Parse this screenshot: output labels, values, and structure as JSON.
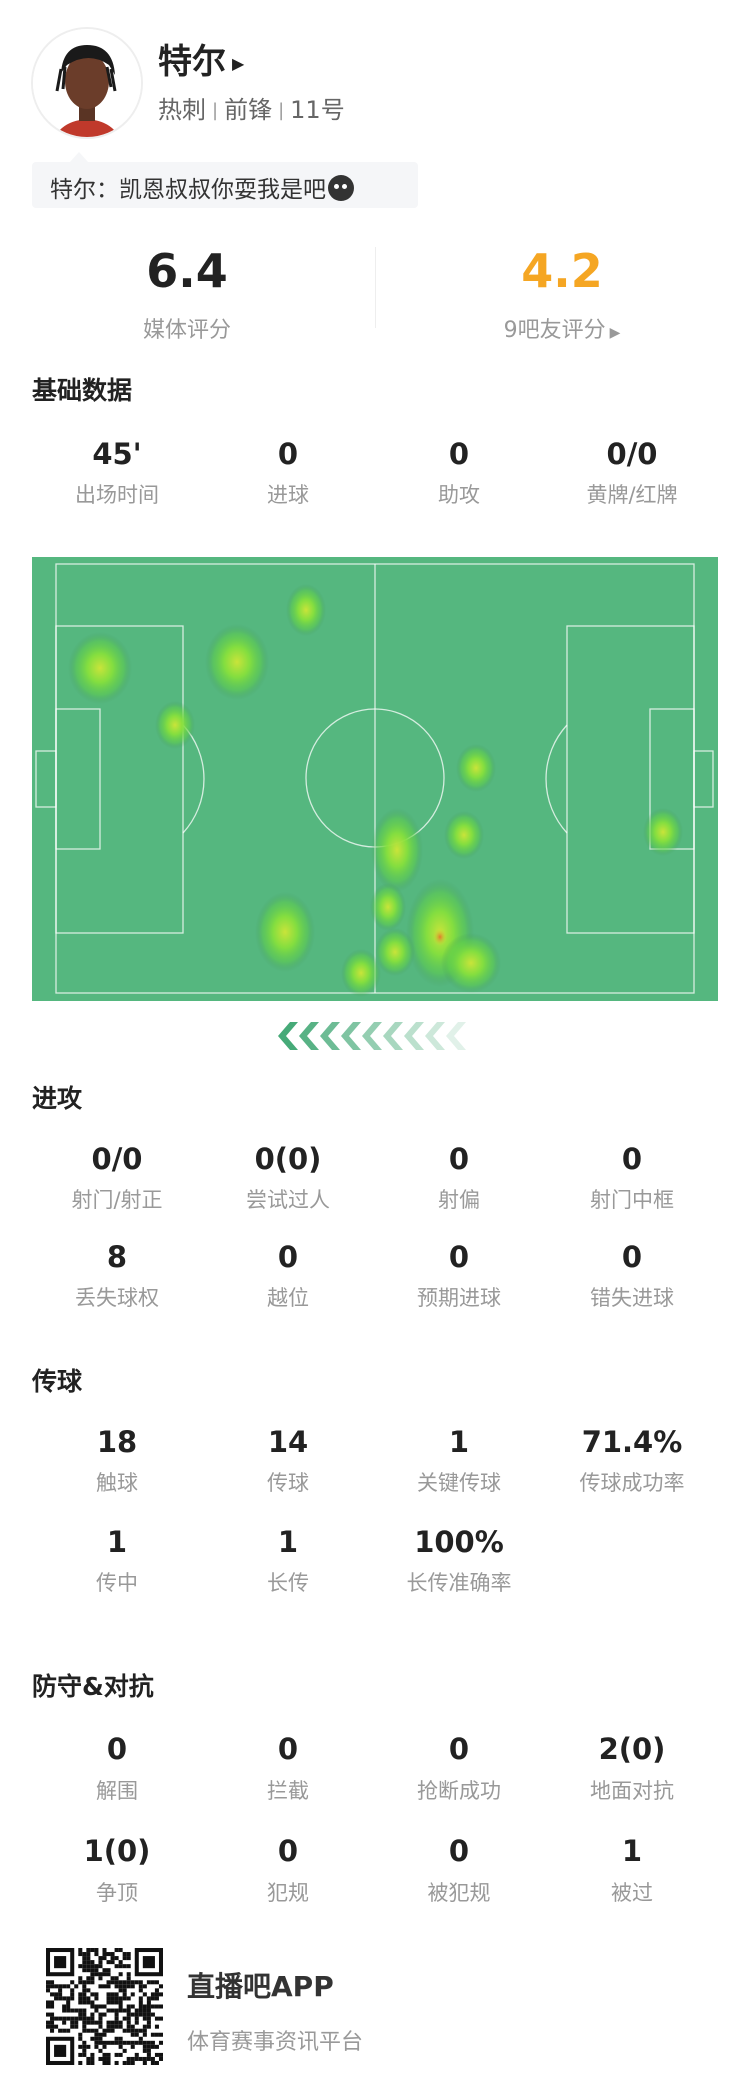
{
  "player": {
    "name": "特尔",
    "team": "热刺",
    "position": "前锋",
    "number": "11号",
    "quote": "特尔：凯恩叔叔你耍我是吧",
    "quote_emoji": "crying-face-emoji"
  },
  "ratings": {
    "media_score": "6.4",
    "media_label": "媒体评分",
    "fan_score": "4.2",
    "fan_label": "9吧友评分",
    "fan_color": "#f5a623"
  },
  "sections": [
    {
      "title": "基础数据",
      "rows": [
        [
          {
            "value": "45'",
            "label": "出场时间"
          },
          {
            "value": "0",
            "label": "进球"
          },
          {
            "value": "0",
            "label": "助攻"
          },
          {
            "value": "0/0",
            "label": "黄牌/红牌"
          }
        ]
      ]
    },
    {
      "title": "进攻",
      "rows": [
        [
          {
            "value": "0/0",
            "label": "射门/射正"
          },
          {
            "value": "0(0)",
            "label": "尝试过人"
          },
          {
            "value": "0",
            "label": "射偏"
          },
          {
            "value": "0",
            "label": "射门中框"
          }
        ],
        [
          {
            "value": "8",
            "label": "丢失球权"
          },
          {
            "value": "0",
            "label": "越位"
          },
          {
            "value": "0",
            "label": "预期进球"
          },
          {
            "value": "0",
            "label": "错失进球"
          }
        ]
      ]
    },
    {
      "title": "传球",
      "rows": [
        [
          {
            "value": "18",
            "label": "触球"
          },
          {
            "value": "14",
            "label": "传球"
          },
          {
            "value": "1",
            "label": "关键传球"
          },
          {
            "value": "71.4%",
            "label": "传球成功率"
          }
        ],
        [
          {
            "value": "1",
            "label": "传中"
          },
          {
            "value": "1",
            "label": "长传"
          },
          {
            "value": "100%",
            "label": "长传准确率"
          }
        ]
      ]
    },
    {
      "title": "防守&对抗",
      "rows": [
        [
          {
            "value": "0",
            "label": "解围"
          },
          {
            "value": "0",
            "label": "拦截"
          },
          {
            "value": "0",
            "label": "抢断成功"
          },
          {
            "value": "2(0)",
            "label": "地面对抗"
          }
        ],
        [
          {
            "value": "1(0)",
            "label": "争顶"
          },
          {
            "value": "0",
            "label": "犯规"
          },
          {
            "value": "0",
            "label": "被犯规"
          },
          {
            "value": "1",
            "label": "被过"
          }
        ]
      ]
    }
  ],
  "heatmap": {
    "pitch_color": "#55b77f",
    "direction": "attacking-left-arrow"
  },
  "footer": {
    "app_name": "直播吧APP",
    "slogan": "体育赛事资讯平台"
  }
}
